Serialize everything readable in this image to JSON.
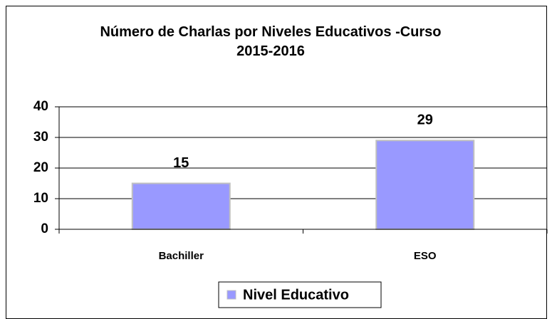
{
  "chart_data": {
    "type": "bar",
    "title": "Número de Charlas por Niveles Educativos -Curso 2015-2016",
    "categories": [
      "Bachiller",
      "ESO"
    ],
    "series": [
      {
        "name": "Nivel Educativo",
        "color": "#9999ff",
        "values": [
          15,
          29
        ]
      }
    ],
    "ylim": [
      0,
      40
    ],
    "yticks": [
      0,
      10,
      20,
      30,
      40
    ],
    "grid": true,
    "legend": "bottom"
  }
}
